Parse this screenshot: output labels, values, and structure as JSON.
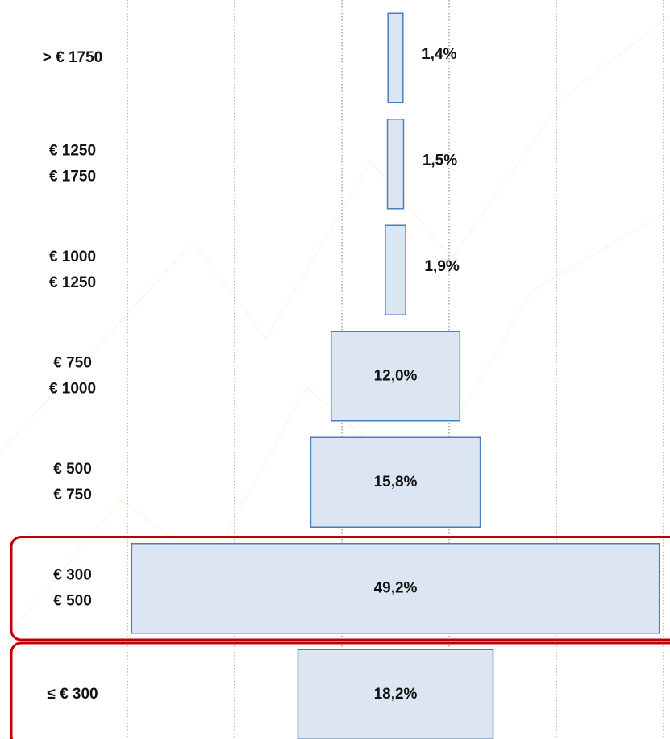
{
  "chart_data": {
    "type": "centered-bar",
    "categories": [
      [
        "> € 1750"
      ],
      [
        "€ 1250",
        "€ 1750"
      ],
      [
        "€ 1000",
        "€ 1250"
      ],
      [
        "€ 750",
        "€ 1000"
      ],
      [
        "€ 500",
        "€ 750"
      ],
      [
        "€ 300",
        "€ 500"
      ],
      [
        "≤ € 300"
      ]
    ],
    "values": [
      1.4,
      1.5,
      1.9,
      12.0,
      15.8,
      49.2,
      18.2
    ],
    "value_labels": [
      "1,4%",
      "1,5%",
      "1,9%",
      "12,0%",
      "15,8%",
      "49,2%",
      "18,2%"
    ],
    "color": "#dce6f2",
    "edge_color": "#4a7ebb",
    "xlim": [
      -25,
      25
    ],
    "xticks": [
      -25,
      -15,
      -5,
      5,
      15,
      25
    ],
    "grid": true,
    "highlight": [
      5,
      6
    ],
    "highlight_color": "#c00000"
  }
}
